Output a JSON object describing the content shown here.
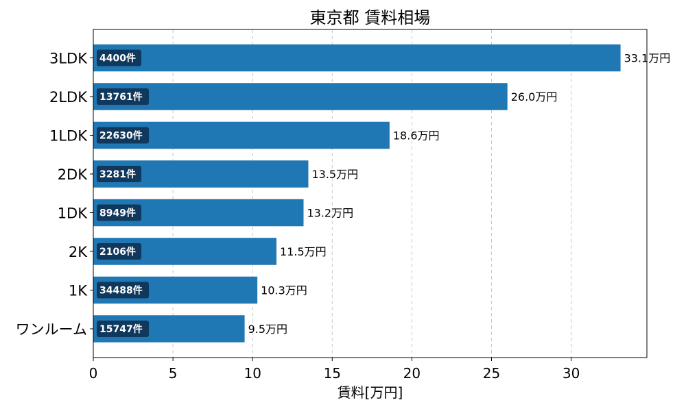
{
  "chart_data": {
    "type": "bar",
    "orientation": "horizontal",
    "title": "東京都 賃料相場",
    "xlabel": "賃料[万円]",
    "ylabel": "",
    "categories": [
      "3LDK",
      "2LDK",
      "1LDK",
      "2DK",
      "1DK",
      "2K",
      "1K",
      "ワンルーム"
    ],
    "values": [
      33.1,
      26.0,
      18.6,
      13.5,
      13.2,
      11.5,
      10.3,
      9.5
    ],
    "value_labels": [
      "33.1万円",
      "26.0万円",
      "18.6万円",
      "13.5万円",
      "13.2万円",
      "11.5万円",
      "10.3万円",
      "9.5万円"
    ],
    "count_labels": [
      "4400件",
      "13761件",
      "22630件",
      "3281件",
      "8949件",
      "2106件",
      "34488件",
      "15747件"
    ],
    "xlim": [
      0,
      34.755
    ],
    "xticks": [
      0,
      5,
      10,
      15,
      20,
      25,
      30
    ],
    "grid": "x-dashed",
    "bar_color": "#1f77b4",
    "count_badge_color": "#10385c"
  }
}
